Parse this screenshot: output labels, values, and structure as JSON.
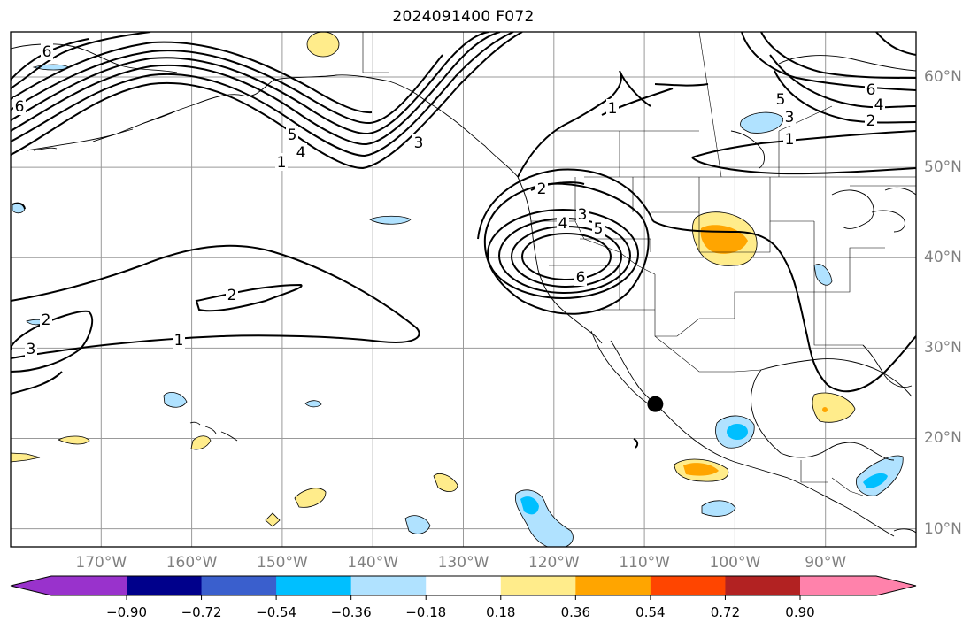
{
  "title": "2024091400 F072",
  "chart_data": {
    "type": "map",
    "title": "2024091400 F072",
    "projection": "equirectangular",
    "lon_range": [
      -180,
      -80
    ],
    "lat_range": [
      8,
      65
    ],
    "grid": true,
    "lon_ticks": [
      "170°W",
      "160°W",
      "150°W",
      "140°W",
      "130°W",
      "120°W",
      "110°W",
      "100°W",
      "90°W"
    ],
    "lat_ticks": [
      "10°N",
      "20°N",
      "30°N",
      "40°N",
      "50°N",
      "60°N"
    ],
    "contour_labels": [
      "6",
      "6",
      "5",
      "4",
      "1",
      "3",
      "2",
      "3",
      "4",
      "5",
      "6",
      "2",
      "2",
      "1",
      "3",
      "1",
      "5",
      "3",
      "1",
      "6",
      "4",
      "2"
    ],
    "marker": {
      "lon": -108.8,
      "lat": 23.8,
      "shape": "filled-circle",
      "color": "#000000"
    },
    "colorbar": {
      "orientation": "horizontal",
      "extend": "both",
      "tick_labels": [
        "−0.90",
        "−0.72",
        "−0.54",
        "−0.36",
        "−0.18",
        "0.18",
        "0.36",
        "0.54",
        "0.72",
        "0.90"
      ],
      "colors": [
        "#9932cc",
        "#00008b",
        "#3a5fcd",
        "#00bfff",
        "#b0e2ff",
        "#ffffff",
        "#ffec8b",
        "#ffa500",
        "#ff4500",
        "#b22222",
        "#ff82ab"
      ]
    }
  }
}
